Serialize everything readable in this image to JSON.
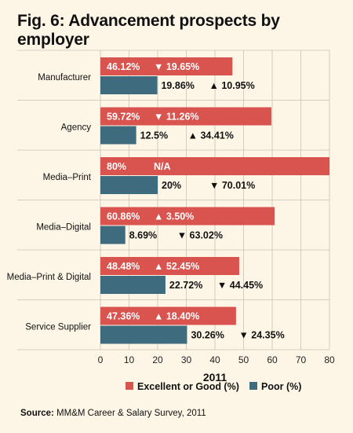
{
  "title": "Fig. 6: Advancement prospects by employer",
  "source_label": "Source:",
  "source_text": "MM&M Career & Salary Survey, 2011",
  "colors": {
    "excellent": "#d9534f",
    "poor": "#3e6b7e",
    "background": "#fdf6e7",
    "grid": "#c9c2b4"
  },
  "chart_data": {
    "type": "bar",
    "orientation": "horizontal",
    "xlabel": "2011",
    "xlim": [
      0,
      80
    ],
    "xticks": [
      0,
      10,
      20,
      30,
      40,
      50,
      60,
      70,
      80
    ],
    "grid": true,
    "legend_position": "bottom",
    "categories": [
      "Manufacturer",
      "Agency",
      "Media–Print",
      "Media–Digital",
      "Media–Print & Digital",
      "Service Supplier"
    ],
    "series": [
      {
        "name": "Excellent or Good (%)",
        "values": [
          46.12,
          59.72,
          80,
          60.86,
          48.48,
          47.36
        ],
        "value_labels": [
          "46.12%",
          "59.72%",
          "80%",
          "60.86%",
          "48.48%",
          "47.36%"
        ],
        "change_labels": [
          "▼ 19.65%",
          "▼ 11.26%",
          "N/A",
          "▲ 3.50%",
          "▲ 52.45%",
          "▲ 18.40%"
        ]
      },
      {
        "name": "Poor (%)",
        "values": [
          19.86,
          12.5,
          20,
          8.69,
          22.72,
          30.26
        ],
        "value_labels": [
          "19.86%",
          "12.5%",
          "20%",
          "8.69%",
          "22.72%",
          "30.26%"
        ],
        "change_labels": [
          "▲ 10.95%",
          "▲ 34.41%",
          "▼ 70.01%",
          "▼ 63.02%",
          "▼ 44.45%",
          "▼ 24.35%"
        ]
      }
    ]
  }
}
